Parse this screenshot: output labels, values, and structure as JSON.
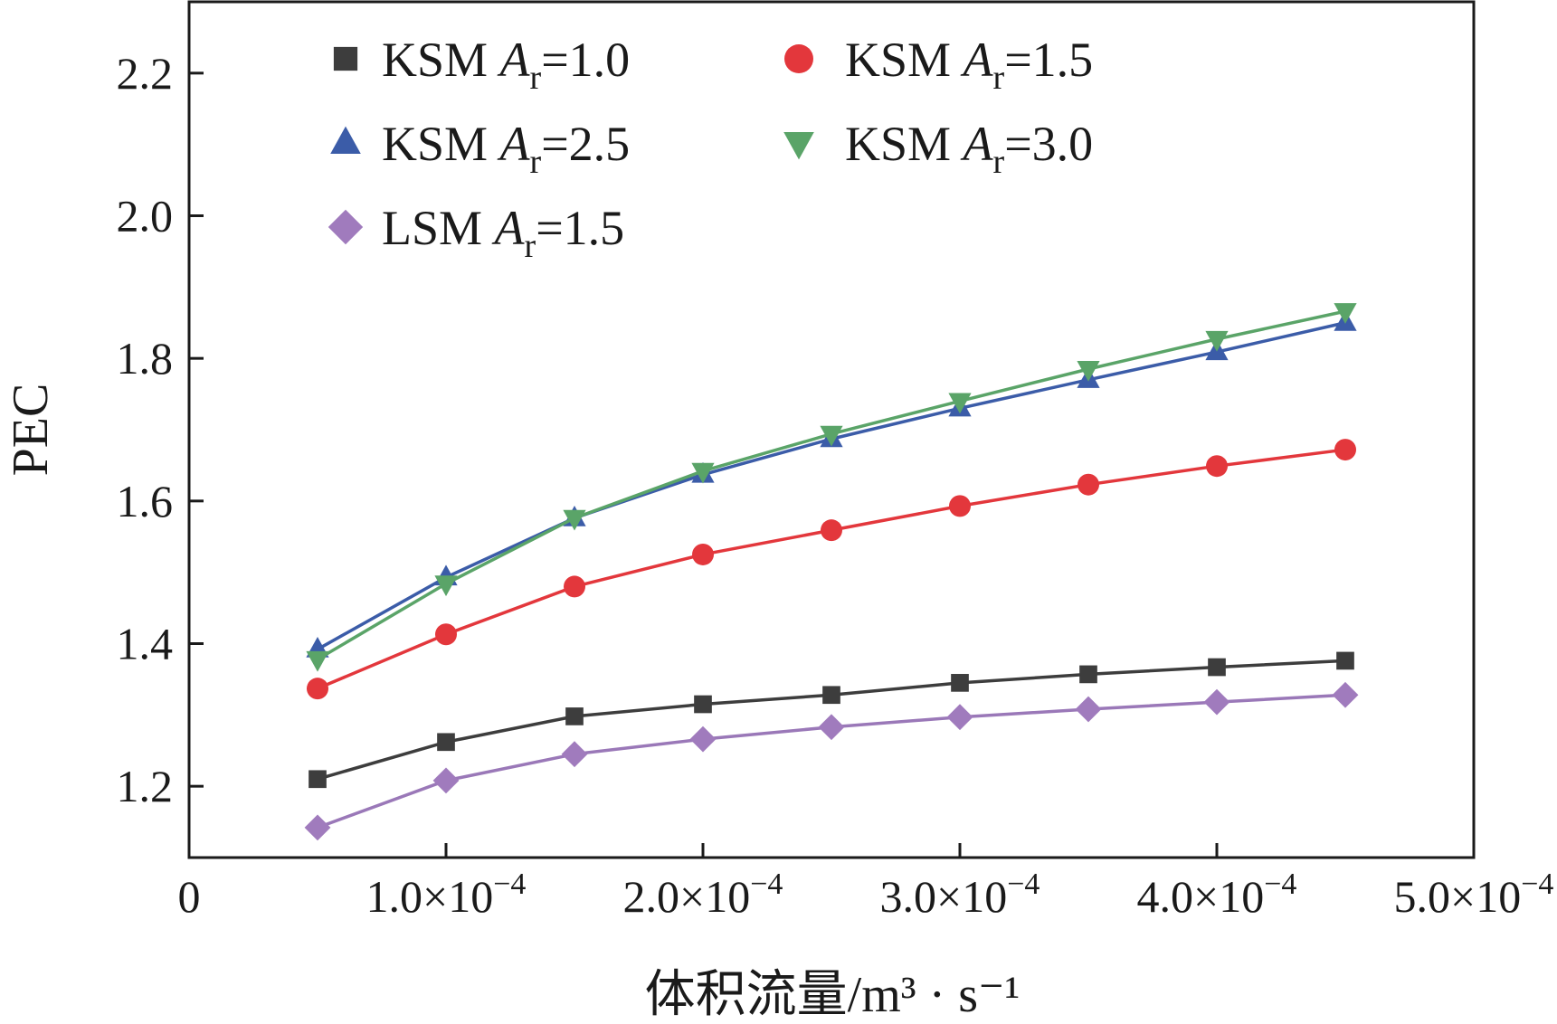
{
  "chart_data": {
    "type": "line",
    "title": "",
    "xlabel": "体积流量/m³ · s⁻¹",
    "ylabel": "PEC",
    "xlim": [
      0,
      0.0005
    ],
    "ylim": [
      1.1,
      2.3
    ],
    "x_ticks": [
      {
        "value": 0,
        "mantissa": "0",
        "exponent": ""
      },
      {
        "value": 0.0001,
        "mantissa": "1.0×10",
        "exponent": "−4"
      },
      {
        "value": 0.0002,
        "mantissa": "2.0×10",
        "exponent": "−4"
      },
      {
        "value": 0.0003,
        "mantissa": "3.0×10",
        "exponent": "−4"
      },
      {
        "value": 0.0004,
        "mantissa": "4.0×10",
        "exponent": "−4"
      },
      {
        "value": 0.0005,
        "mantissa": "5.0×10",
        "exponent": "−4"
      }
    ],
    "y_ticks": [
      {
        "value": 1.2,
        "label": "1.2"
      },
      {
        "value": 1.4,
        "label": "1.4"
      },
      {
        "value": 1.6,
        "label": "1.6"
      },
      {
        "value": 1.8,
        "label": "1.8"
      },
      {
        "value": 2.0,
        "label": "2.0"
      },
      {
        "value": 2.2,
        "label": "2.2"
      }
    ],
    "x": [
      5e-05,
      0.0001,
      0.00015,
      0.0002,
      0.00025,
      0.0003,
      0.00035,
      0.0004,
      0.00045
    ],
    "legend_position": "top-left",
    "series": [
      {
        "name": "KSM Ar=1.0",
        "prefix": "KSM ",
        "var": "A",
        "sub": "r",
        "suffix": "=1.0",
        "marker": "square",
        "color": "#3d3d3d",
        "line_color": "#3d3d3d",
        "values": [
          1.21,
          1.262,
          1.298,
          1.315,
          1.328,
          1.345,
          1.357,
          1.367,
          1.376
        ]
      },
      {
        "name": "KSM Ar=1.5",
        "prefix": "KSM ",
        "var": "A",
        "sub": "r",
        "suffix": "=1.5",
        "marker": "circle",
        "color": "#e3373c",
        "line_color": "#e3373c",
        "values": [
          1.337,
          1.413,
          1.48,
          1.525,
          1.559,
          1.593,
          1.623,
          1.649,
          1.672
        ]
      },
      {
        "name": "KSM Ar=2.5",
        "prefix": "KSM ",
        "var": "A",
        "sub": "r",
        "suffix": "=2.5",
        "marker": "triangle-up",
        "color": "#3b5ca8",
        "line_color": "#3b5ca8",
        "values": [
          1.392,
          1.493,
          1.576,
          1.637,
          1.687,
          1.73,
          1.77,
          1.809,
          1.85
        ]
      },
      {
        "name": "KSM Ar=3.0",
        "prefix": "KSM ",
        "var": "A",
        "sub": "r",
        "suffix": "=3.0",
        "marker": "triangle-down",
        "color": "#5aa468",
        "line_color": "#5aa468",
        "values": [
          1.378,
          1.484,
          1.576,
          1.642,
          1.694,
          1.74,
          1.785,
          1.827,
          1.866
        ]
      },
      {
        "name": "LSM Ar=1.5",
        "prefix": "LSM ",
        "var": "A",
        "sub": "r",
        "suffix": "=1.5",
        "marker": "diamond",
        "color": "#a07bbd",
        "line_color": "#9a78b8",
        "values": [
          1.142,
          1.208,
          1.245,
          1.266,
          1.283,
          1.297,
          1.308,
          1.318,
          1.328
        ]
      }
    ]
  }
}
